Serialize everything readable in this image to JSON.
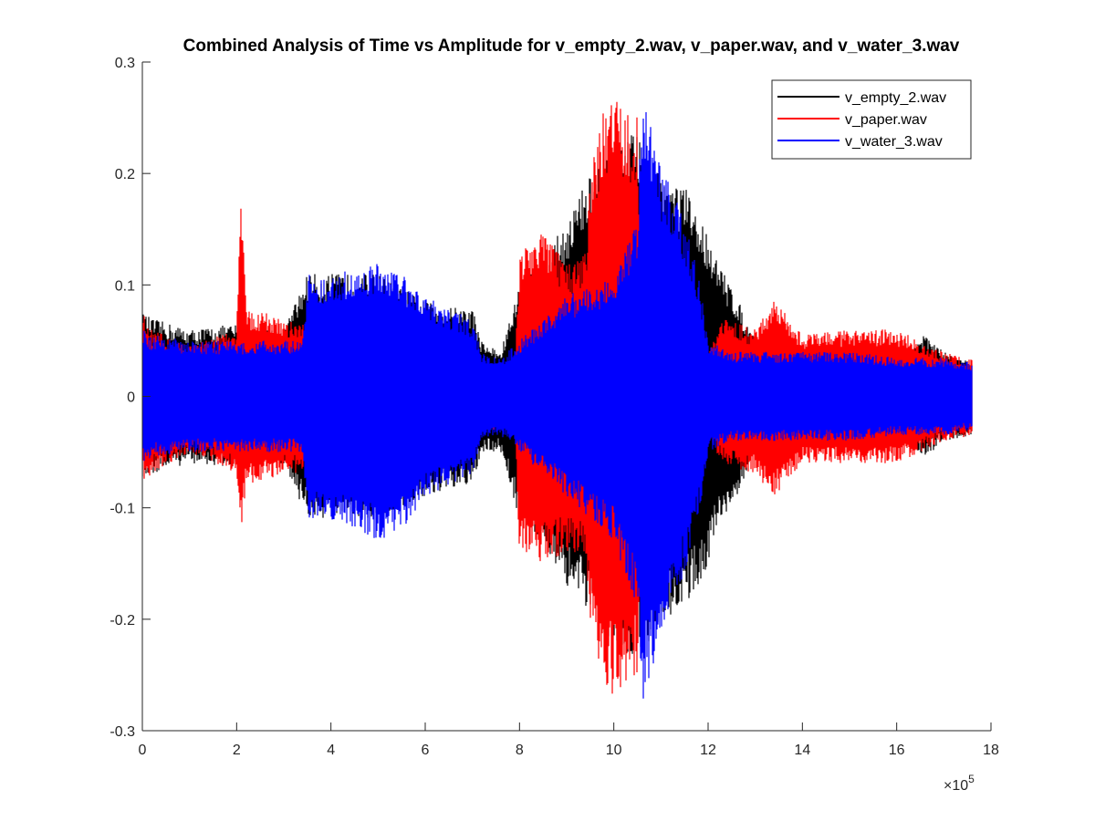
{
  "chart_data": {
    "type": "line",
    "title": "Combined Analysis of Time vs Amplitude for v_empty_2.wav, v_paper.wav, and v_water_3.wav",
    "xlabel": "",
    "ylabel": "",
    "xlim": [
      0,
      1800000
    ],
    "ylim": [
      -0.3,
      0.3
    ],
    "x_exponent_label": "×10",
    "x_exponent_power": "5",
    "x_ticks": [
      0,
      200000,
      400000,
      600000,
      800000,
      1000000,
      1200000,
      1400000,
      1600000,
      1800000
    ],
    "x_tick_labels": [
      "0",
      "2",
      "4",
      "6",
      "8",
      "10",
      "12",
      "14",
      "16",
      "18"
    ],
    "y_ticks": [
      -0.3,
      -0.2,
      -0.1,
      0,
      0.1,
      0.2,
      0.3
    ],
    "y_tick_labels": [
      "-0.3",
      "-0.2",
      "-0.1",
      "0",
      "0.1",
      "0.2",
      "0.3"
    ],
    "grid": false,
    "legend_position": "top-right",
    "series": [
      {
        "name": "v_empty_2.wav",
        "color": "#000000",
        "envelope": {
          "x": [
            0,
            20000,
            100000,
            200000,
            300000,
            350000,
            400000,
            500000,
            600000,
            650000,
            700000,
            720000,
            760000,
            800000,
            850000,
            900000,
            950000,
            1000000,
            1050000,
            1100000,
            1150000,
            1180000,
            1200000,
            1220000,
            1250000,
            1300000,
            1400000,
            1500000,
            1600000,
            1660000,
            1700000,
            1760000
          ],
          "upper": [
            0.075,
            0.07,
            0.06,
            0.065,
            0.06,
            0.11,
            0.11,
            0.11,
            0.085,
            0.08,
            0.08,
            0.05,
            0.04,
            0.1,
            0.12,
            0.16,
            0.2,
            0.22,
            0.24,
            0.2,
            0.19,
            0.16,
            0.15,
            0.12,
            0.1,
            0.05,
            0.045,
            0.04,
            0.04,
            0.055,
            0.04,
            0.03
          ],
          "lower": [
            -0.075,
            -0.07,
            -0.06,
            -0.065,
            -0.06,
            -0.11,
            -0.11,
            -0.11,
            -0.09,
            -0.085,
            -0.08,
            -0.05,
            -0.05,
            -0.11,
            -0.13,
            -0.17,
            -0.2,
            -0.22,
            -0.24,
            -0.2,
            -0.19,
            -0.17,
            -0.15,
            -0.12,
            -0.1,
            -0.05,
            -0.045,
            -0.04,
            -0.04,
            -0.055,
            -0.04,
            -0.035
          ]
        }
      },
      {
        "name": "v_paper.wav",
        "color": "#ff0000",
        "envelope": {
          "x": [
            0,
            20000,
            100000,
            200000,
            210000,
            220000,
            300000,
            340000,
            360000,
            500000,
            700000,
            790000,
            800000,
            850000,
            900000,
            940000,
            950000,
            980000,
            1000000,
            1050000,
            1060000,
            1100000,
            1200000,
            1230000,
            1300000,
            1340000,
            1400000,
            1500000,
            1600000,
            1700000,
            1760000
          ],
          "upper": [
            0.075,
            0.06,
            0.045,
            0.06,
            0.19,
            0.08,
            0.07,
            0.07,
            0.03,
            0.03,
            0.03,
            0.03,
            0.13,
            0.15,
            0.12,
            0.13,
            0.2,
            0.26,
            0.27,
            0.25,
            0.1,
            0.06,
            0.04,
            0.07,
            0.06,
            0.09,
            0.055,
            0.06,
            0.06,
            0.04,
            0.035
          ],
          "lower": [
            -0.075,
            -0.07,
            -0.05,
            -0.07,
            -0.12,
            -0.08,
            -0.07,
            -0.07,
            -0.03,
            -0.03,
            -0.03,
            -0.03,
            -0.14,
            -0.15,
            -0.14,
            -0.14,
            -0.2,
            -0.26,
            -0.27,
            -0.25,
            -0.1,
            -0.06,
            -0.04,
            -0.06,
            -0.07,
            -0.09,
            -0.06,
            -0.06,
            -0.06,
            -0.04,
            -0.035
          ]
        }
      },
      {
        "name": "v_water_3.wav",
        "color": "#0000ff",
        "envelope": {
          "x": [
            0,
            20000,
            100000,
            200000,
            300000,
            340000,
            350000,
            400000,
            500000,
            550000,
            600000,
            650000,
            700000,
            720000,
            760000,
            800000,
            850000,
            900000,
            950000,
            1000000,
            1050000,
            1060000,
            1100000,
            1150000,
            1180000,
            1200000,
            1250000,
            1300000,
            1400000,
            1500000,
            1600000,
            1700000,
            1760000
          ],
          "upper": [
            0.06,
            0.055,
            0.05,
            0.05,
            0.05,
            0.05,
            0.11,
            0.11,
            0.12,
            0.11,
            0.09,
            0.08,
            0.07,
            0.04,
            0.035,
            0.05,
            0.07,
            0.09,
            0.1,
            0.11,
            0.16,
            0.27,
            0.21,
            0.16,
            0.11,
            0.05,
            0.04,
            0.04,
            0.04,
            0.04,
            0.035,
            0.035,
            0.03
          ],
          "lower": [
            -0.06,
            -0.055,
            -0.05,
            -0.05,
            -0.05,
            -0.05,
            -0.11,
            -0.11,
            -0.13,
            -0.12,
            -0.09,
            -0.08,
            -0.07,
            -0.04,
            -0.035,
            -0.05,
            -0.07,
            -0.09,
            -0.11,
            -0.13,
            -0.2,
            -0.28,
            -0.22,
            -0.16,
            -0.11,
            -0.05,
            -0.04,
            -0.04,
            -0.04,
            -0.04,
            -0.035,
            -0.035,
            -0.03
          ]
        }
      }
    ]
  }
}
